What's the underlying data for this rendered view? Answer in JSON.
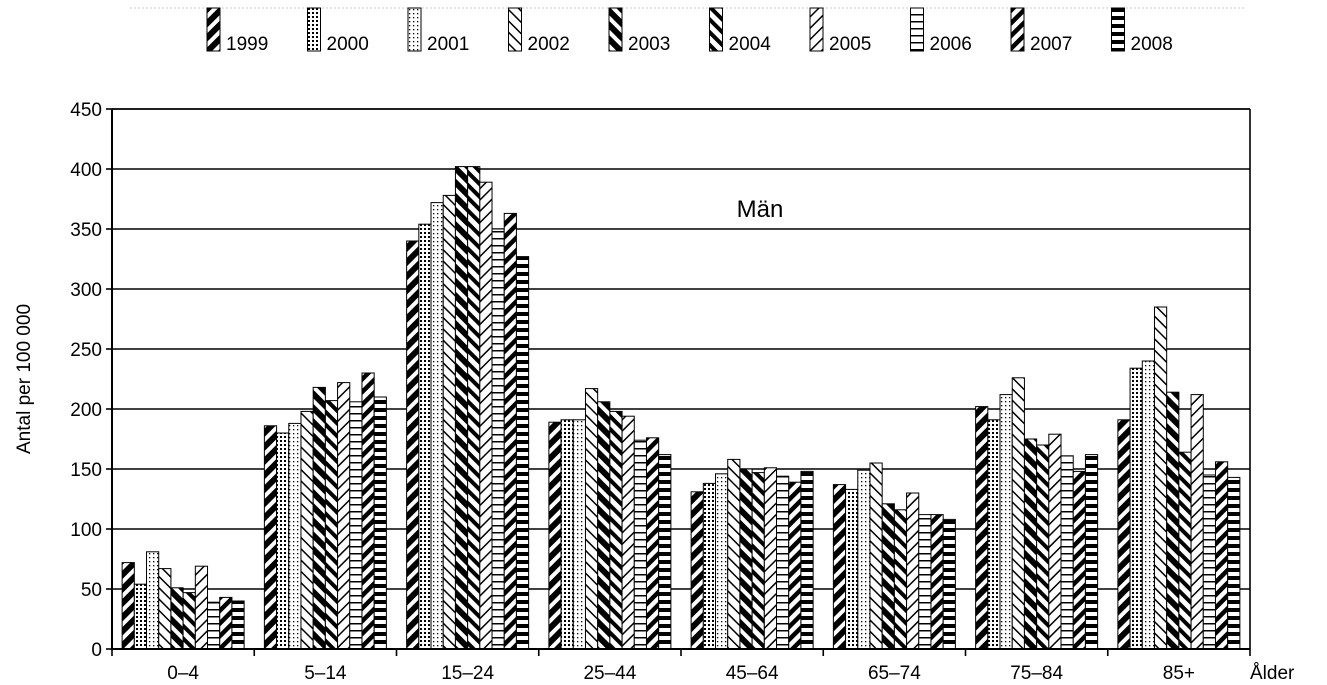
{
  "chart_data": {
    "type": "bar",
    "annotation": "Män",
    "xlabel": "Ålder",
    "ylabel": "Antal per 100 000",
    "ylim": [
      0,
      450
    ],
    "yticks": [
      0,
      50,
      100,
      150,
      200,
      250,
      300,
      350,
      400,
      450
    ],
    "grid": true,
    "legend_position": "top",
    "categories": [
      "0–4",
      "5–14",
      "15–24",
      "25–44",
      "45–64",
      "65–74",
      "75–84",
      "85+"
    ],
    "series": [
      {
        "name": "1999",
        "pattern": "hatch-fwd-thick",
        "values": [
          72,
          186,
          340,
          189,
          131,
          137,
          202,
          191
        ]
      },
      {
        "name": "2000",
        "pattern": "dots-dense",
        "values": [
          54,
          180,
          354,
          191,
          138,
          133,
          191,
          234
        ]
      },
      {
        "name": "2001",
        "pattern": "dots-sparse",
        "values": [
          81,
          188,
          372,
          191,
          146,
          149,
          212,
          240
        ]
      },
      {
        "name": "2002",
        "pattern": "hatch-back-thin",
        "values": [
          67,
          198,
          378,
          217,
          158,
          155,
          226,
          285
        ]
      },
      {
        "name": "2003",
        "pattern": "hatch-back-thick",
        "values": [
          51,
          218,
          402,
          206,
          150,
          121,
          175,
          214
        ]
      },
      {
        "name": "2004",
        "pattern": "hatch-back-medium",
        "values": [
          47,
          207,
          402,
          198,
          147,
          116,
          170,
          164
        ]
      },
      {
        "name": "2005",
        "pattern": "hatch-fwd-thin",
        "values": [
          69,
          222,
          389,
          194,
          151,
          130,
          179,
          212
        ]
      },
      {
        "name": "2006",
        "pattern": "horizontal-lines",
        "values": [
          39,
          206,
          350,
          174,
          144,
          112,
          161,
          145
        ]
      },
      {
        "name": "2007",
        "pattern": "hatch-fwd-medium",
        "values": [
          43,
          230,
          363,
          176,
          139,
          112,
          148,
          156
        ]
      },
      {
        "name": "2008",
        "pattern": "horizontal-thick",
        "values": [
          40,
          210,
          327,
          162,
          148,
          108,
          162,
          143
        ]
      }
    ]
  }
}
